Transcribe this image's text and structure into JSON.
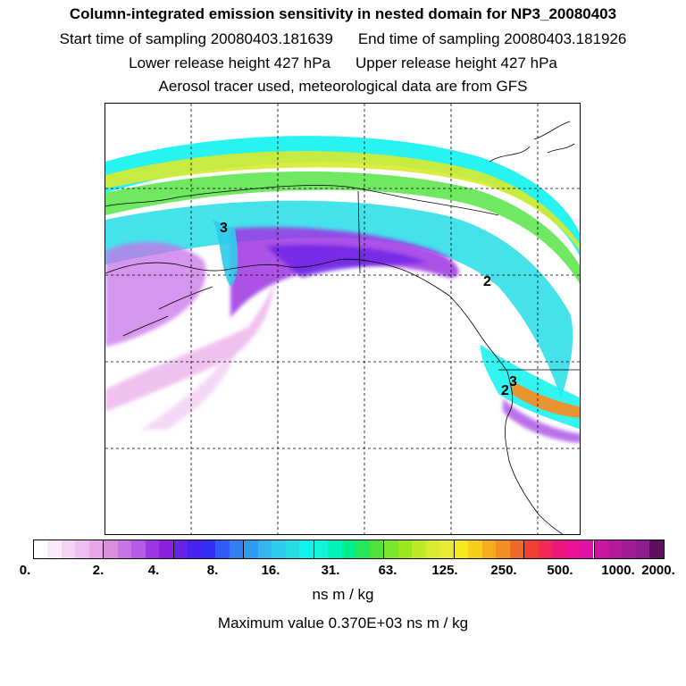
{
  "header": {
    "title": "Column-integrated emission sensitivity in nested domain for NP3_20080403",
    "start_time": "Start time of sampling 20080403.181639",
    "end_time": "End time of sampling 20080403.181926",
    "lower_height": "Lower release height  427 hPa",
    "upper_height": "Upper release height  427 hPa",
    "tracer_info": "Aerosol tracer used, meteorological data are from GFS"
  },
  "map": {
    "labels": [
      {
        "text": "3"
      },
      {
        "text": "2"
      },
      {
        "text": "3"
      },
      {
        "text": "2"
      }
    ]
  },
  "colorbar": {
    "tick_labels": [
      "0.",
      "2.",
      "4.",
      "8.",
      "16.",
      "31.",
      "63.",
      "125.",
      "250.",
      "500.",
      "1000.",
      "2000."
    ],
    "colors": [
      [
        "#ffffff",
        "#fbe9fb",
        "#f4d3f4",
        "#eec0ee",
        "#e8a8e8"
      ],
      [
        "#d98ed9",
        "#c873e8",
        "#b45ce6",
        "#9e36e3",
        "#8a1fe0"
      ],
      [
        "#6a22e8",
        "#4a22f0",
        "#3030f5",
        "#2f5cf5",
        "#2f7ff2"
      ],
      [
        "#2e9bf0",
        "#33b6ee",
        "#2fcbeb",
        "#26dde6",
        "#0ff2ee"
      ],
      [
        "#12f5d7",
        "#00f2b8",
        "#00ee8a",
        "#22e85a",
        "#4ee23a"
      ],
      [
        "#78e62b",
        "#9ce622",
        "#bfe82b",
        "#d8ea2f",
        "#e6ec33"
      ],
      [
        "#f5e81f",
        "#f7cc1a",
        "#f5ad1f",
        "#f38e24",
        "#ef6a2a"
      ],
      [
        "#ef4036",
        "#f32857",
        "#f0177a",
        "#ec1298",
        "#df12a7"
      ],
      [
        "#c9169f",
        "#b5189a",
        "#a01d96",
        "#8c1e8e",
        "#5e0f5e"
      ]
    ],
    "units": "ns m / kg",
    "max_text": "Maximum value  0.370E+03 ns m / kg"
  }
}
